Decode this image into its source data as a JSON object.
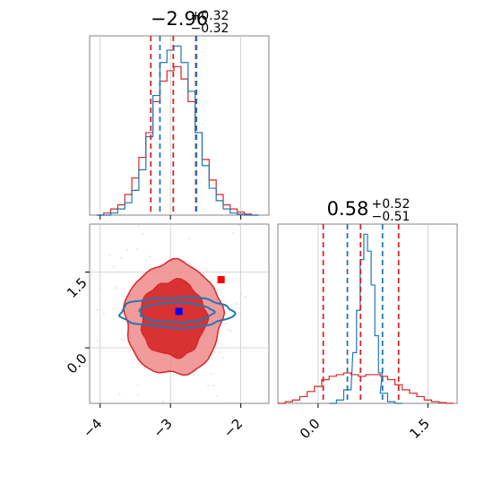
{
  "chart_data": {
    "type": "corner",
    "colors": {
      "red": "#d62728",
      "blue": "#1f77b4",
      "light_red": "#f08a8b",
      "marker_blue": "#0000ff",
      "marker_red": "#ff0000",
      "grid": "#c8c8c8"
    },
    "grid": true,
    "panels": [
      {
        "id": "hist-param1",
        "type": "histogram",
        "title": {
          "median": "−2.96",
          "upper": "+0.32",
          "lower": "−0.32"
        },
        "xlim": [
          -4.15,
          -1.6
        ],
        "x_ticks": [
          -4,
          -3,
          -2
        ],
        "red_quantiles": [
          -3.28,
          -2.96,
          -2.64
        ],
        "blue_quantiles": [
          -3.15,
          -2.63
        ],
        "series": [
          {
            "name": "",
            "color": "#d62728",
            "x": [
              -4.0,
              -3.9,
              -3.8,
              -3.7,
              -3.6,
              -3.5,
              -3.4,
              -3.3,
              -3.2,
              -3.1,
              -3.0,
              -2.9,
              -2.8,
              -2.7,
              -2.6,
              -2.5,
              -2.4,
              -2.3,
              -2.2,
              -2.1,
              -2.0,
              -1.9,
              -1.8
            ],
            "values": [
              0.0,
              0.01,
              0.03,
              0.05,
              0.1,
              0.18,
              0.28,
              0.4,
              0.55,
              0.65,
              0.7,
              0.72,
              0.66,
              0.55,
              0.4,
              0.27,
              0.17,
              0.1,
              0.05,
              0.03,
              0.015,
              0.005,
              0.0
            ]
          },
          {
            "name": "",
            "color": "#1f77b4",
            "x": [
              -4.0,
              -3.9,
              -3.8,
              -3.7,
              -3.6,
              -3.5,
              -3.4,
              -3.3,
              -3.2,
              -3.1,
              -3.0,
              -2.9,
              -2.8,
              -2.7,
              -2.6,
              -2.5,
              -2.4,
              -2.3,
              -2.2,
              -2.1,
              -2.0,
              -1.9,
              -1.8
            ],
            "values": [
              0.0,
              0.0,
              0.01,
              0.03,
              0.06,
              0.12,
              0.22,
              0.38,
              0.58,
              0.74,
              0.8,
              0.82,
              0.74,
              0.6,
              0.4,
              0.24,
              0.13,
              0.07,
              0.03,
              0.01,
              0.005,
              0.0,
              0.0
            ]
          }
        ]
      },
      {
        "id": "hist-param2",
        "type": "histogram",
        "title": {
          "median": "0.58",
          "upper": "+0.52",
          "lower": "−0.51"
        },
        "xlim": [
          -0.55,
          1.9
        ],
        "x_ticks": [
          0.0,
          1.5
        ],
        "x_tick_labels": [
          "0.0",
          "1.5"
        ],
        "red_quantiles": [
          0.07,
          0.58,
          1.1
        ],
        "blue_quantiles": [
          0.4,
          0.88
        ],
        "series": [
          {
            "name": "",
            "color": "#d62728",
            "x": [
              -0.5,
              -0.4,
              -0.3,
              -0.2,
              -0.1,
              0.0,
              0.1,
              0.2,
              0.3,
              0.4,
              0.5,
              0.6,
              0.7,
              0.8,
              0.9,
              1.0,
              1.1,
              1.2,
              1.3,
              1.4,
              1.5,
              1.6,
              1.7,
              1.8
            ],
            "values": [
              0.0,
              0.01,
              0.02,
              0.04,
              0.07,
              0.1,
              0.14,
              0.16,
              0.17,
              0.18,
              0.17,
              0.16,
              0.17,
              0.17,
              0.16,
              0.14,
              0.11,
              0.08,
              0.06,
              0.04,
              0.02,
              0.01,
              0.005,
              0.0
            ]
          },
          {
            "name": "",
            "color": "#1f77b4",
            "x": [
              0.2,
              0.3,
              0.4,
              0.5,
              0.55,
              0.6,
              0.65,
              0.7,
              0.75,
              0.8,
              0.85,
              0.9,
              1.0,
              1.1
            ],
            "values": [
              0.0,
              0.02,
              0.08,
              0.3,
              0.55,
              0.85,
              1.0,
              0.9,
              0.7,
              0.4,
              0.18,
              0.06,
              0.01,
              0.0
            ]
          }
        ]
      },
      {
        "id": "contour-2d",
        "type": "contour",
        "xlim": [
          -4.15,
          -1.6
        ],
        "ylim": [
          -1.1,
          2.45
        ],
        "x_ticks": [
          -4,
          -3,
          -2
        ],
        "y_ticks": [
          0.0,
          1.5
        ],
        "y_tick_labels": [
          "0.0",
          "1.5"
        ],
        "red_center": [
          -2.96,
          0.58
        ],
        "red_sigma": [
          0.32,
          0.52
        ],
        "blue_center": [
          -2.92,
          0.7
        ],
        "blue_sigma": [
          0.35,
          0.13
        ],
        "markers": [
          {
            "name": "blue-marker",
            "x": -2.88,
            "y": 0.72,
            "color": "#0000ff"
          },
          {
            "name": "red-marker",
            "x": -2.28,
            "y": 1.35,
            "color": "#ff0000"
          }
        ]
      }
    ]
  }
}
